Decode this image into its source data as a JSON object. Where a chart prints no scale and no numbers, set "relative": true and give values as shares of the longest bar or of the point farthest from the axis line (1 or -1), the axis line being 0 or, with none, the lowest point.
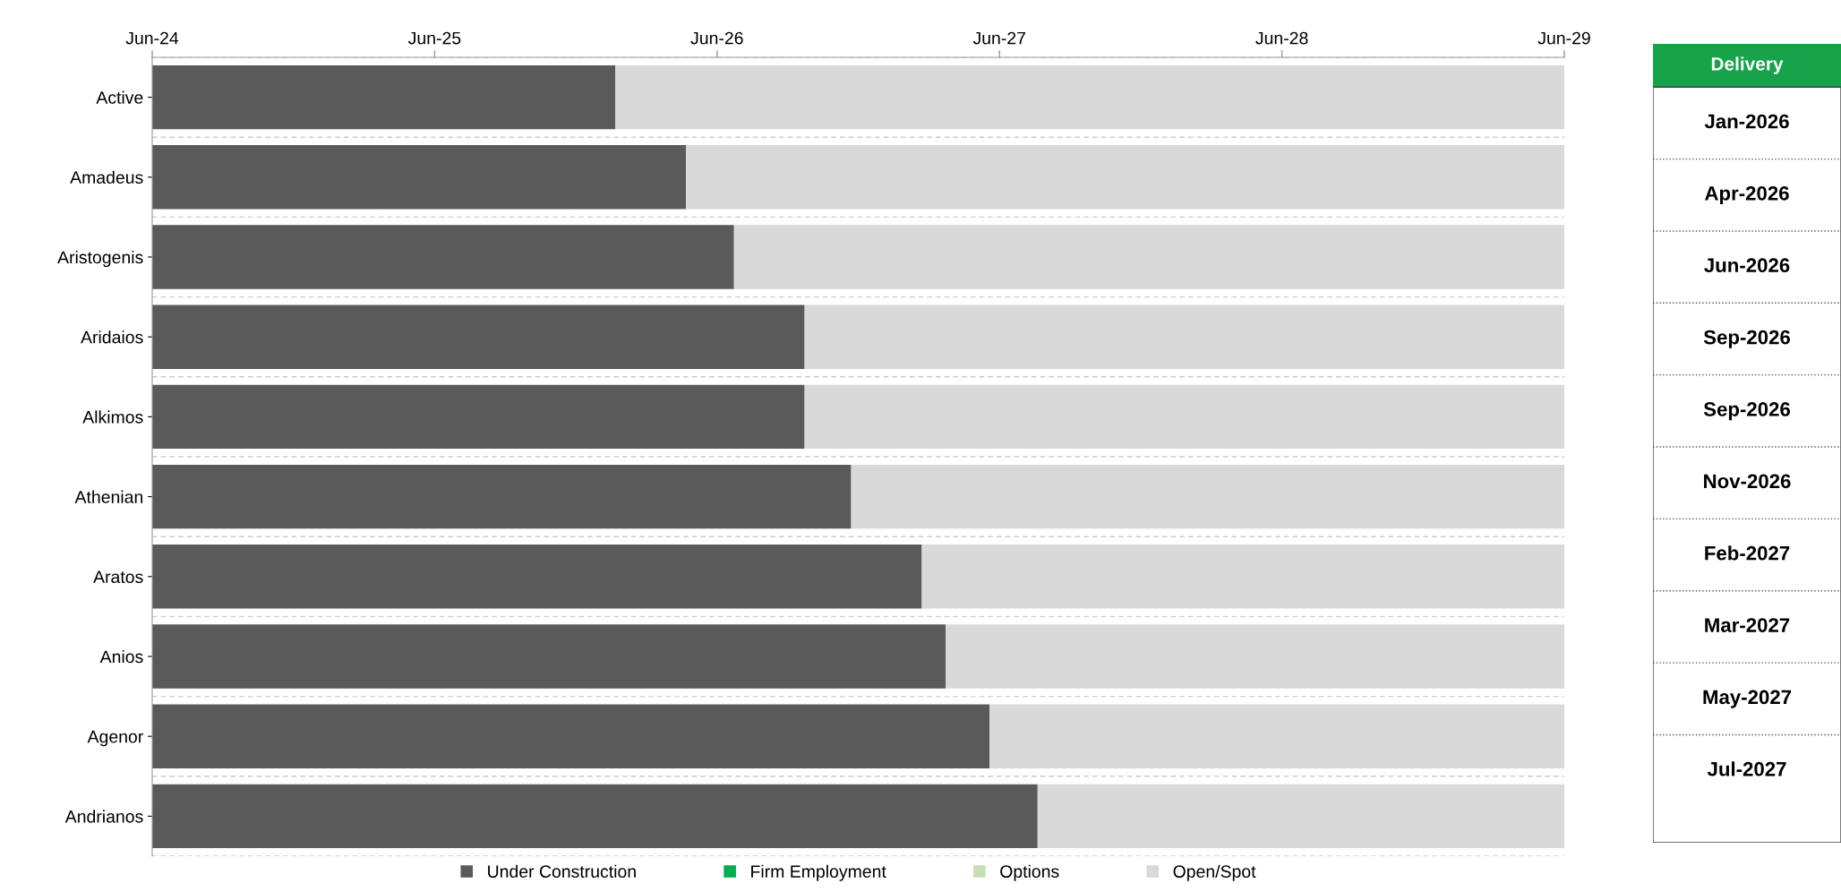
{
  "chart_data": [
    {
      "type": "bar",
      "orientation": "horizontal",
      "stacked": true,
      "relative": true,
      "categories": [
        "Active",
        "Amadeus",
        "Aristogenis",
        "Aridaios",
        "Alkimos",
        "Athenian",
        "Aratos",
        "Anios",
        "Agenor",
        "Andrianos"
      ],
      "series": [
        {
          "name": "Under Construction",
          "color": "#5a5a5a",
          "values": [
            0.328,
            0.378,
            0.412,
            0.462,
            0.462,
            0.495,
            0.545,
            0.562,
            0.593,
            0.627
          ]
        },
        {
          "name": "Firm Employment",
          "color": "#00b050",
          "values": [
            0,
            0,
            0,
            0,
            0,
            0,
            0,
            0,
            0,
            0
          ]
        },
        {
          "name": "Options",
          "color": "#c6e0b4",
          "values": [
            0,
            0,
            0,
            0,
            0,
            0,
            0,
            0,
            0,
            0
          ]
        },
        {
          "name": "Open/Spot",
          "color": "#d9d9d9",
          "values": [
            0.672,
            0.622,
            0.588,
            0.538,
            0.538,
            0.505,
            0.455,
            0.438,
            0.407,
            0.373
          ]
        }
      ],
      "annotations": [
        "Jun-24",
        "Jun-25",
        "Jun-26",
        "Jun-27",
        "Jun-28",
        "Jun-29"
      ],
      "legend": "bottom"
    },
    {
      "type": "other",
      "title": "Delivery",
      "annotations": [
        "Jan-2026",
        "Apr-2026",
        "Jun-2026",
        "Sep-2026",
        "Sep-2026",
        "Nov-2026",
        "Feb-2027",
        "Mar-2027",
        "May-2027",
        "Jul-2027"
      ]
    }
  ]
}
